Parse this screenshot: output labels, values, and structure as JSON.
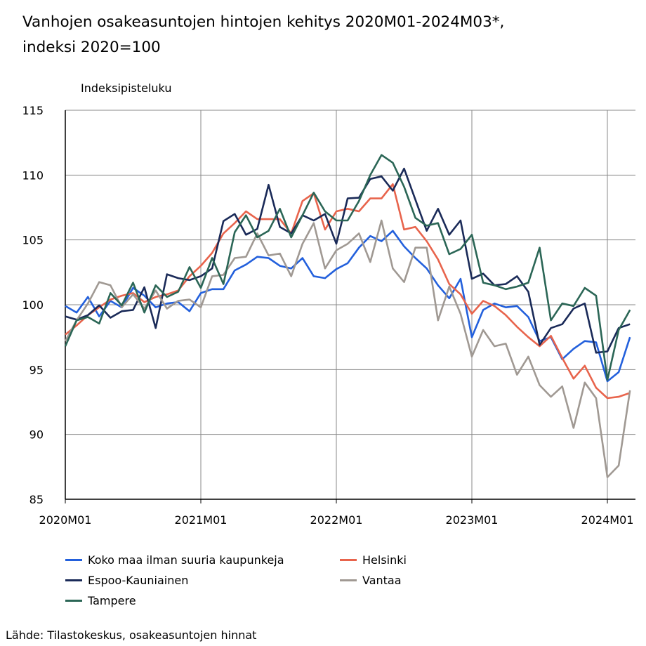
{
  "chart_data": {
    "type": "line",
    "title": "Vanhojen osakeasuntojen hintojen kehitys 2020M01-2024M03*,\nindeksi 2020=100",
    "ylabel": "Indeksipisteluku",
    "xlabel": "",
    "ylim": [
      85,
      115
    ],
    "yticks": [
      85,
      90,
      95,
      100,
      105,
      110,
      115
    ],
    "xstart": "2020M01",
    "xticks": [
      "2020M01",
      "2021M01",
      "2022M01",
      "2023M01",
      "2024M01"
    ],
    "grid": true,
    "legend_position": "bottom",
    "series": [
      {
        "name": "Koko maa ilman suuria kaupunkeja",
        "color": "#2360dc",
        "values": [
          99.9,
          99.4,
          100.6,
          99.1,
          100.3,
          99.8,
          101.3,
          100.7,
          99.8,
          100.1,
          100.2,
          99.5,
          100.9,
          101.2,
          101.2,
          102.65,
          103.1,
          103.7,
          103.6,
          103.0,
          102.8,
          103.6,
          102.2,
          102.05,
          102.75,
          103.2,
          104.4,
          105.3,
          104.9,
          105.7,
          104.5,
          103.6,
          102.8,
          101.5,
          100.5,
          102.0,
          97.5,
          99.6,
          100.1,
          99.8,
          99.9,
          99.05,
          97.2,
          97.5,
          95.8,
          96.6,
          97.2,
          97.1,
          94.1,
          94.8,
          97.5
        ]
      },
      {
        "name": "Helsinki",
        "color": "#e8644c",
        "values": [
          97.7,
          98.4,
          99.2,
          99.8,
          100.4,
          100.7,
          100.9,
          100.2,
          100.6,
          100.8,
          101.1,
          102.2,
          103.0,
          104.0,
          105.5,
          106.3,
          107.2,
          106.6,
          106.6,
          106.6,
          105.5,
          108.0,
          108.6,
          105.8,
          107.2,
          107.4,
          107.2,
          108.2,
          108.2,
          109.3,
          105.8,
          106.0,
          104.9,
          103.5,
          101.6,
          100.8,
          99.3,
          100.3,
          99.9,
          99.2,
          98.3,
          97.5,
          96.8,
          97.6,
          95.9,
          94.3,
          95.3,
          93.6,
          92.8,
          92.9,
          93.2
        ]
      },
      {
        "name": "Espoo-Kauniainen",
        "color": "#1a2a58",
        "values": [
          99.1,
          98.85,
          99.2,
          99.95,
          99.0,
          99.5,
          99.6,
          101.35,
          98.2,
          102.35,
          102.05,
          101.9,
          102.2,
          102.8,
          106.45,
          107.0,
          105.4,
          105.85,
          109.25,
          106.0,
          105.5,
          106.9,
          106.5,
          107.0,
          104.7,
          108.2,
          108.25,
          109.7,
          109.9,
          108.8,
          110.5,
          108.1,
          105.7,
          107.4,
          105.4,
          106.5,
          102.0,
          102.4,
          101.5,
          101.6,
          102.2,
          101.0,
          96.9,
          98.2,
          98.5,
          99.7,
          100.1,
          96.3,
          96.4,
          98.2,
          98.5
        ]
      },
      {
        "name": "Vantaa",
        "color": "#a09993",
        "values": [
          97.2,
          98.8,
          100.1,
          101.75,
          101.5,
          99.8,
          100.8,
          99.7,
          101.1,
          99.7,
          100.3,
          100.4,
          99.8,
          102.2,
          102.3,
          103.6,
          103.7,
          105.5,
          103.8,
          103.95,
          102.2,
          104.7,
          106.3,
          102.8,
          104.2,
          104.7,
          105.5,
          103.3,
          106.5,
          102.8,
          101.75,
          104.4,
          104.4,
          98.8,
          101.4,
          99.3,
          96.0,
          98.05,
          96.8,
          97.0,
          94.6,
          96.0,
          93.8,
          92.9,
          93.7,
          90.5,
          94.0,
          92.8,
          86.7,
          87.6,
          93.4
        ]
      },
      {
        "name": "Tampere",
        "color": "#2b6656",
        "values": [
          96.8,
          98.8,
          99.05,
          98.55,
          100.9,
          99.95,
          101.7,
          99.4,
          101.5,
          100.6,
          101.0,
          102.9,
          101.3,
          103.6,
          101.6,
          105.6,
          106.9,
          105.2,
          105.7,
          107.4,
          105.2,
          106.9,
          108.65,
          107.2,
          106.5,
          106.5,
          108.0,
          110.0,
          111.55,
          110.95,
          109.1,
          106.7,
          106.1,
          106.3,
          103.9,
          104.3,
          105.4,
          101.7,
          101.5,
          101.2,
          101.4,
          101.7,
          104.4,
          98.8,
          100.1,
          99.9,
          101.3,
          100.7,
          94.2,
          98.05,
          99.6
        ]
      }
    ]
  },
  "source": "Lähde: Tilastokeskus, osakeasuntojen hinnat"
}
